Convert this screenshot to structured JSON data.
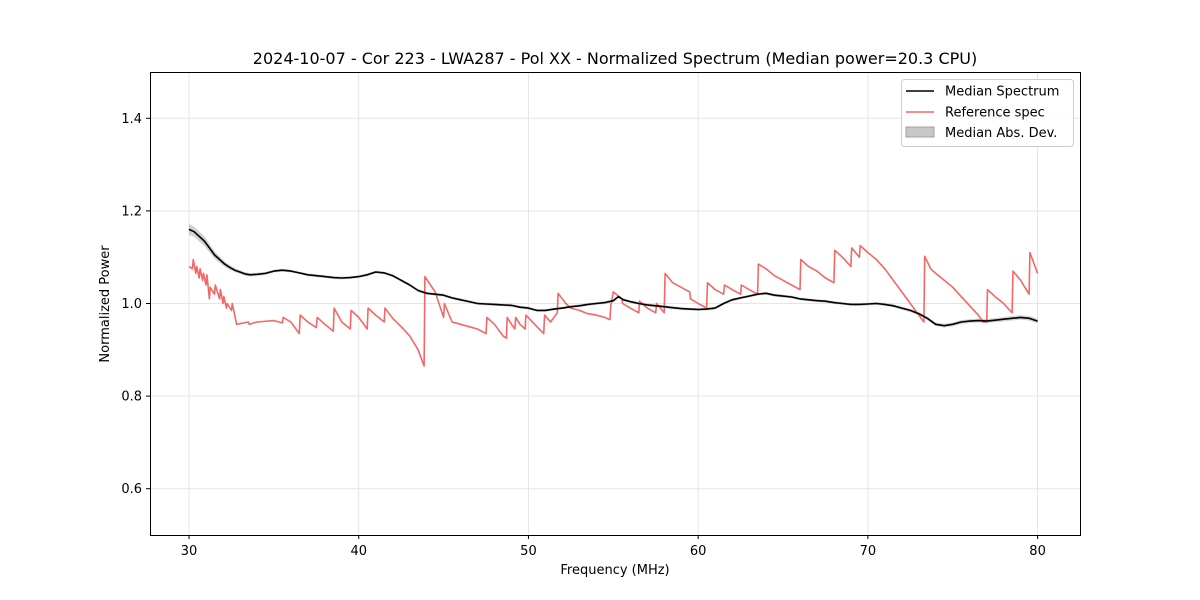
{
  "chart_data": {
    "type": "line",
    "title": "2024-10-07 - Cor 223 - LWA287 - Pol XX - Normalized Spectrum (Median power=20.3 CPU)",
    "xlabel": "Frequency (MHz)",
    "ylabel": "Normalized Power",
    "xlim": [
      27.7,
      82.5
    ],
    "ylim": [
      0.5,
      1.5
    ],
    "xticks": [
      30,
      40,
      50,
      60,
      70,
      80
    ],
    "yticks": [
      0.6,
      0.8,
      1.0,
      1.2,
      1.4
    ],
    "xtick_labels": [
      "30",
      "40",
      "50",
      "60",
      "70",
      "80"
    ],
    "ytick_labels": [
      "0.6",
      "0.8",
      "1.0",
      "1.2",
      "1.4"
    ],
    "grid": true,
    "legend_position": "top-right",
    "legend": [
      "Median Spectrum",
      "Reference spec",
      "Median Abs. Dev."
    ],
    "colors": {
      "median": "#000000",
      "reference": "#f46767",
      "mad_fill": "#b3b3b3"
    },
    "series": [
      {
        "name": "Median Spectrum",
        "x": [
          30.0,
          30.3,
          30.6,
          30.9,
          31.2,
          31.5,
          31.8,
          32.1,
          32.4,
          32.7,
          33.0,
          33.3,
          33.6,
          34.0,
          34.5,
          35.0,
          35.5,
          36.0,
          36.5,
          37.0,
          37.5,
          38.0,
          38.5,
          39.0,
          39.5,
          40.0,
          40.5,
          41.0,
          41.5,
          42.0,
          42.5,
          43.0,
          43.5,
          44.0,
          44.5,
          45.0,
          45.5,
          46.0,
          46.5,
          47.0,
          47.5,
          48.0,
          48.5,
          49.0,
          49.5,
          50.0,
          50.5,
          51.0,
          51.5,
          52.0,
          52.5,
          53.0,
          53.5,
          54.0,
          54.5,
          55.0,
          55.3,
          55.6,
          56.0,
          56.5,
          57.0,
          57.5,
          58.0,
          58.5,
          59.0,
          59.5,
          60.0,
          60.5,
          61.0,
          61.5,
          62.0,
          62.5,
          63.0,
          63.5,
          64.0,
          64.5,
          65.0,
          65.5,
          66.0,
          66.5,
          67.0,
          67.5,
          68.0,
          68.5,
          69.0,
          69.5,
          70.0,
          70.5,
          71.0,
          71.5,
          72.0,
          72.5,
          73.0,
          73.5,
          74.0,
          74.5,
          75.0,
          75.5,
          76.0,
          76.5,
          77.0,
          77.5,
          78.0,
          78.5,
          79.0,
          79.5,
          80.0
        ],
        "values": [
          1.16,
          1.155,
          1.145,
          1.135,
          1.12,
          1.105,
          1.095,
          1.085,
          1.078,
          1.072,
          1.068,
          1.064,
          1.062,
          1.063,
          1.065,
          1.07,
          1.072,
          1.07,
          1.066,
          1.062,
          1.06,
          1.058,
          1.056,
          1.055,
          1.056,
          1.058,
          1.062,
          1.068,
          1.066,
          1.06,
          1.05,
          1.04,
          1.028,
          1.022,
          1.02,
          1.018,
          1.012,
          1.008,
          1.004,
          1.0,
          0.999,
          0.998,
          0.997,
          0.996,
          0.992,
          0.99,
          0.985,
          0.985,
          0.988,
          0.99,
          0.993,
          0.995,
          0.998,
          1.0,
          1.002,
          1.006,
          1.015,
          1.008,
          1.004,
          1.0,
          0.997,
          0.995,
          0.993,
          0.991,
          0.989,
          0.988,
          0.987,
          0.988,
          0.99,
          1.0,
          1.008,
          1.012,
          1.016,
          1.02,
          1.022,
          1.018,
          1.016,
          1.014,
          1.01,
          1.008,
          1.006,
          1.005,
          1.002,
          1.0,
          0.998,
          0.998,
          0.999,
          1.0,
          0.998,
          0.995,
          0.99,
          0.985,
          0.978,
          0.968,
          0.955,
          0.952,
          0.955,
          0.96,
          0.962,
          0.963,
          0.962,
          0.964,
          0.966,
          0.968,
          0.97,
          0.968,
          0.962
        ]
      },
      {
        "name": "Reference spec",
        "x": [
          30.0,
          30.2,
          30.25,
          30.4,
          30.45,
          30.6,
          30.65,
          30.8,
          30.85,
          31.0,
          31.05,
          31.2,
          31.25,
          31.5,
          31.55,
          31.8,
          31.85,
          32.0,
          32.05,
          32.2,
          32.25,
          32.5,
          32.55,
          32.8,
          33.5,
          33.55,
          34.0,
          35.0,
          35.5,
          35.55,
          36.0,
          36.5,
          36.55,
          37.0,
          37.5,
          37.55,
          38.0,
          38.5,
          38.55,
          39.0,
          39.5,
          39.55,
          40.0,
          40.5,
          40.55,
          41.0,
          41.5,
          41.55,
          42.0,
          42.5,
          43.0,
          43.5,
          43.85,
          43.9,
          44.5,
          45.0,
          45.05,
          45.5,
          46.0,
          46.5,
          47.0,
          47.5,
          47.55,
          48.0,
          48.5,
          48.7,
          48.75,
          49.0,
          49.2,
          49.25,
          49.5,
          49.8,
          49.85,
          50.5,
          50.9,
          50.95,
          51.3,
          51.7,
          51.75,
          52.2,
          52.5,
          53.0,
          53.5,
          54.0,
          54.5,
          54.8,
          54.85,
          55.0,
          55.5,
          55.55,
          56.0,
          56.5,
          56.55,
          57.0,
          57.5,
          57.55,
          58.0,
          58.05,
          58.5,
          59.0,
          59.5,
          59.55,
          60.0,
          60.5,
          60.55,
          61.0,
          61.5,
          61.55,
          62.0,
          62.5,
          62.55,
          63.0,
          63.5,
          63.55,
          64.0,
          64.5,
          65.0,
          65.5,
          66.0,
          66.05,
          66.5,
          67.0,
          67.5,
          68.0,
          68.05,
          68.5,
          69.0,
          69.05,
          69.5,
          69.55,
          70.0,
          70.5,
          71.0,
          71.5,
          72.0,
          72.5,
          73.0,
          73.3,
          73.35,
          73.7,
          74.0,
          74.5,
          75.0,
          75.5,
          76.0,
          76.5,
          76.8,
          77.0,
          77.05,
          77.5,
          78.0,
          78.5,
          78.55,
          79.0,
          79.5,
          79.55,
          80.0
        ],
        "values": [
          1.08,
          1.075,
          1.095,
          1.065,
          1.08,
          1.055,
          1.075,
          1.05,
          1.065,
          1.04,
          1.062,
          1.01,
          1.035,
          1.02,
          1.04,
          1.01,
          1.03,
          1.0,
          1.015,
          0.99,
          1.0,
          0.985,
          1.0,
          0.955,
          0.96,
          0.955,
          0.96,
          0.963,
          0.958,
          0.97,
          0.96,
          0.935,
          0.975,
          0.96,
          0.948,
          0.97,
          0.955,
          0.94,
          0.99,
          0.96,
          0.945,
          0.985,
          0.97,
          0.945,
          0.99,
          0.975,
          0.96,
          0.99,
          0.968,
          0.95,
          0.93,
          0.9,
          0.865,
          1.058,
          1.025,
          0.97,
          1.0,
          0.96,
          0.955,
          0.95,
          0.945,
          0.935,
          0.97,
          0.955,
          0.93,
          0.925,
          0.97,
          0.955,
          0.945,
          0.97,
          0.955,
          0.945,
          0.975,
          0.95,
          0.935,
          0.975,
          0.96,
          0.98,
          1.022,
          1.0,
          0.99,
          0.985,
          0.978,
          0.975,
          0.97,
          0.965,
          0.995,
          1.025,
          1.01,
          1.0,
          0.99,
          0.98,
          1.005,
          0.99,
          0.98,
          1.0,
          0.98,
          1.065,
          1.045,
          1.035,
          1.025,
          1.01,
          1.0,
          0.99,
          1.045,
          1.03,
          1.02,
          1.04,
          1.03,
          1.02,
          1.04,
          1.03,
          1.02,
          1.085,
          1.075,
          1.06,
          1.05,
          1.04,
          1.03,
          1.095,
          1.08,
          1.07,
          1.055,
          1.045,
          1.115,
          1.1,
          1.08,
          1.12,
          1.1,
          1.125,
          1.11,
          1.095,
          1.075,
          1.05,
          1.025,
          1.0,
          0.975,
          0.96,
          1.102,
          1.075,
          1.065,
          1.05,
          1.035,
          1.015,
          0.995,
          0.975,
          0.96,
          0.96,
          1.03,
          1.015,
          1.0,
          0.98,
          1.07,
          1.05,
          1.02,
          1.11,
          1.065
        ]
      },
      {
        "name": "Median Abs. Dev.",
        "x": [
          30.0,
          30.5,
          31.0,
          31.5,
          32.0,
          32.5,
          33.0,
          35.0,
          40.0,
          45.0,
          50.0,
          55.0,
          60.0,
          65.0,
          70.0,
          75.0,
          80.0
        ],
        "values": [
          0.012,
          0.011,
          0.01,
          0.008,
          0.006,
          0.005,
          0.004,
          0.003,
          0.003,
          0.003,
          0.003,
          0.003,
          0.003,
          0.003,
          0.003,
          0.004,
          0.005
        ]
      }
    ]
  }
}
